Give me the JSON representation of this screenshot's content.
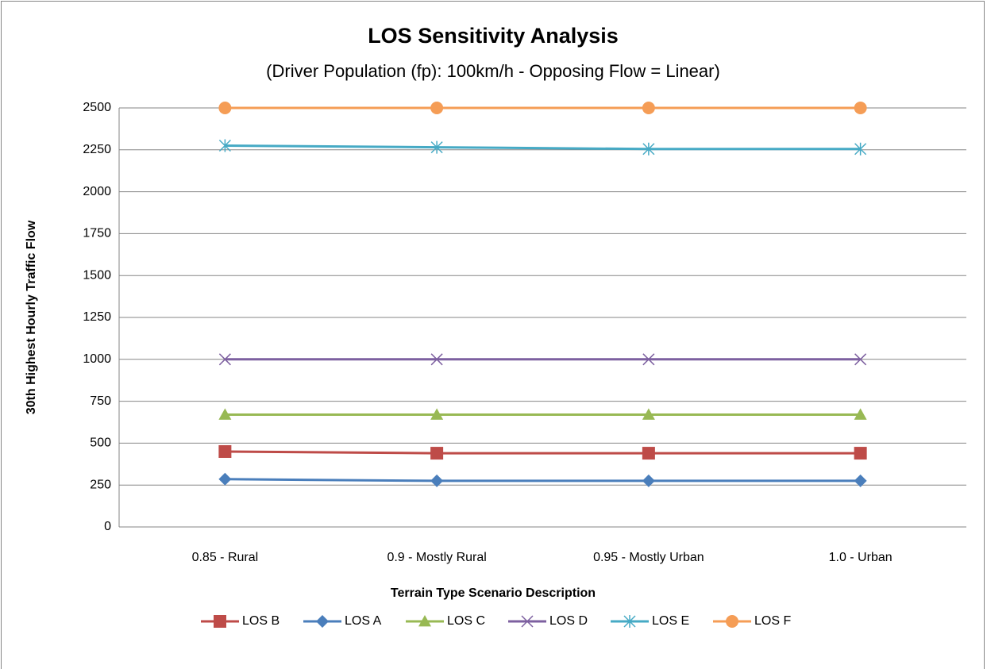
{
  "chart_data": {
    "type": "line",
    "title": "LOS Sensitivity Analysis",
    "subtitle": "(Driver Population (fp): 100km/h - Opposing Flow = Linear)",
    "x_label": "Terrain Type Scenario Description",
    "y_label": "30th Highest Hourly Traffic Flow",
    "categories": [
      "0.85 - Rural",
      "0.9 - Mostly Rural",
      "0.95 - Mostly Urban",
      "1.0 - Urban"
    ],
    "series": [
      {
        "name": "LOS B",
        "color": "#be4b48",
        "marker": "square",
        "values": [
          450,
          440,
          440,
          440
        ]
      },
      {
        "name": "LOS A",
        "color": "#4a7ebb",
        "marker": "diamond",
        "values": [
          285,
          275,
          275,
          275
        ]
      },
      {
        "name": "LOS C",
        "color": "#98b954",
        "marker": "triangle",
        "values": [
          670,
          670,
          670,
          670
        ]
      },
      {
        "name": "LOS D",
        "color": "#7d60a0",
        "marker": "x",
        "values": [
          1000,
          1000,
          1000,
          1000
        ]
      },
      {
        "name": "LOS E",
        "color": "#46aac5",
        "marker": "asterisk",
        "values": [
          2275,
          2265,
          2255,
          2255
        ]
      },
      {
        "name": "LOS F",
        "color": "#f59d56",
        "marker": "circle",
        "values": [
          2500,
          2500,
          2500,
          2500
        ]
      }
    ],
    "ylim": [
      0,
      2500
    ],
    "yticks": [
      0,
      250,
      500,
      750,
      1000,
      1250,
      1500,
      1750,
      2000,
      2250,
      2500
    ],
    "grid": true,
    "legend": "bottom"
  }
}
